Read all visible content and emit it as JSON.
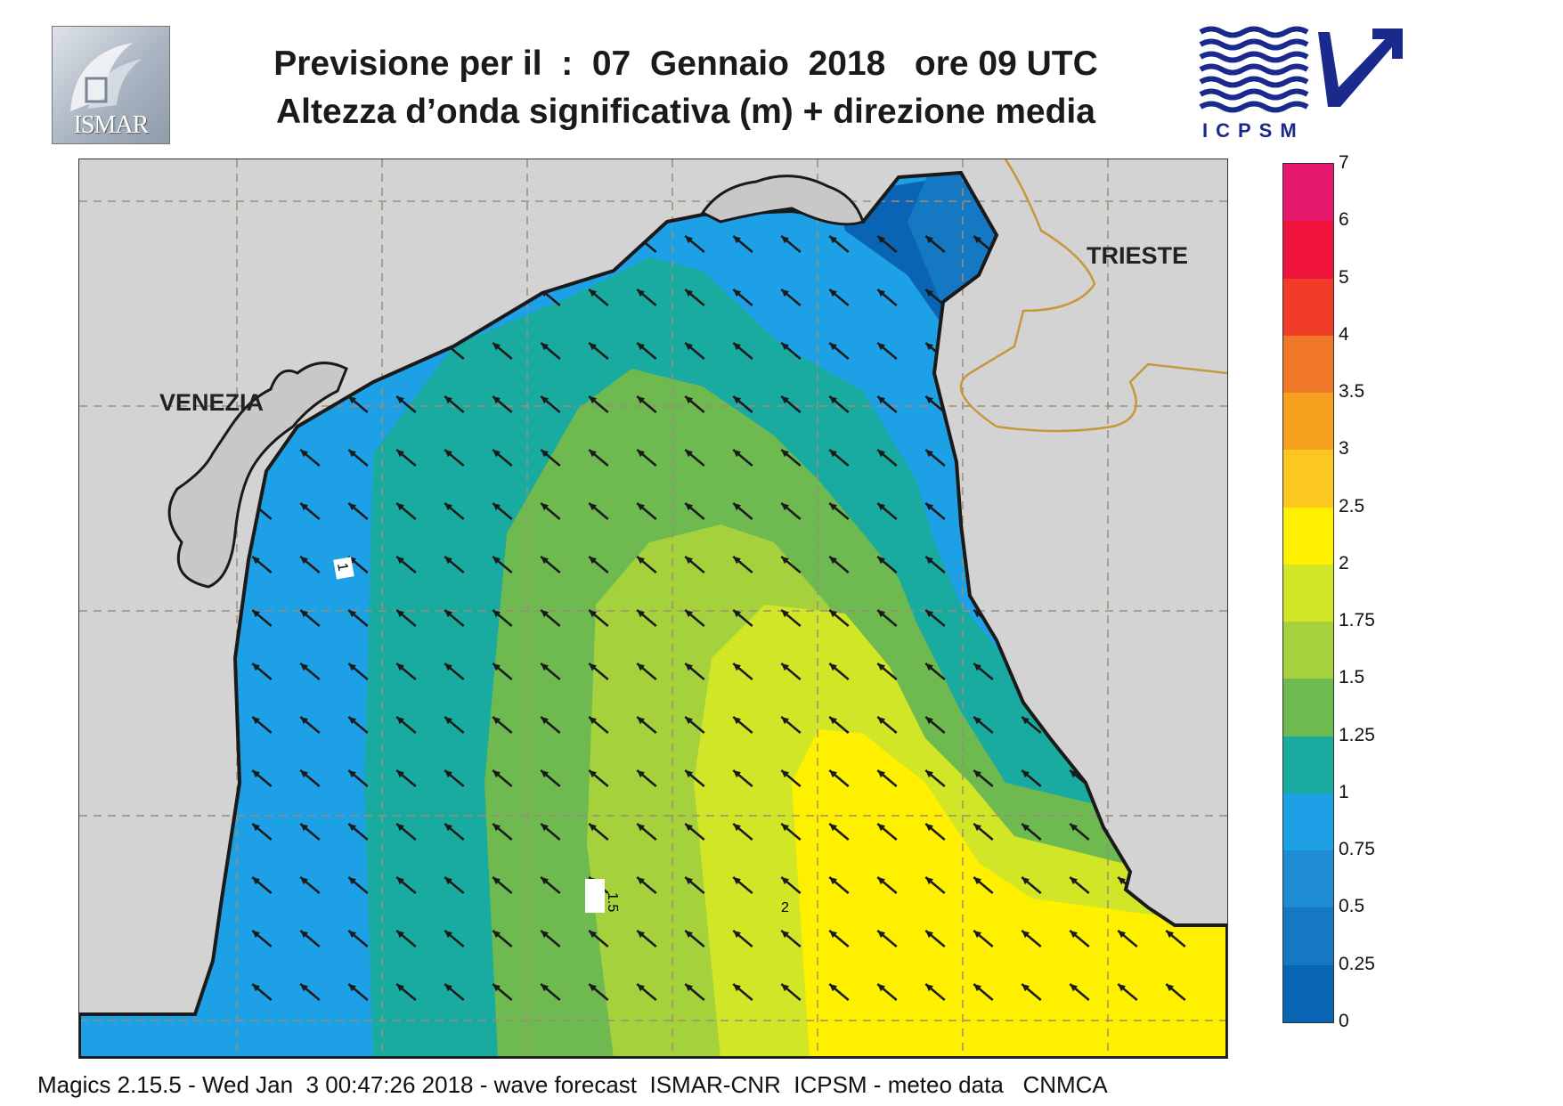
{
  "header": {
    "title_line1": "Previsione per il  :  07  Gennaio  2018   ore 09 UTC",
    "title_line2": "Altezza d’onda significativa (m) + direzione media"
  },
  "logos": {
    "left": {
      "icon": "ismar-logo",
      "text": "ISMAR"
    },
    "right": {
      "icon": "icpsm-logo",
      "text": "ICPSM"
    }
  },
  "map": {
    "cities": [
      {
        "name": "VENEZIA"
      },
      {
        "name": "TRIESTE"
      }
    ],
    "contour_labels": [
      "1",
      "1.5",
      "2"
    ],
    "arrow_direction": "north-west",
    "colors": {
      "land": "#d3d3d3",
      "grid": "#a08c78",
      "coast": "#1a1a1a",
      "border": "#c8963c"
    }
  },
  "legend": {
    "unit": "m",
    "bins": [
      {
        "label": "7",
        "color": "#e6196e"
      },
      {
        "label": "6",
        "color": "#f0143c"
      },
      {
        "label": "5",
        "color": "#f03c28"
      },
      {
        "label": "4",
        "color": "#f07828"
      },
      {
        "label": "3.5",
        "color": "#f5a01e"
      },
      {
        "label": "3",
        "color": "#fac81e"
      },
      {
        "label": "2.5",
        "color": "#fff000"
      },
      {
        "label": "2",
        "color": "#d2e628"
      },
      {
        "label": "1.75",
        "color": "#a5d23c"
      },
      {
        "label": "1.5",
        "color": "#6eb950"
      },
      {
        "label": "1.25",
        "color": "#19aaa0"
      },
      {
        "label": "1",
        "color": "#1ea0e6"
      },
      {
        "label": "0.75",
        "color": "#1e8cd2"
      },
      {
        "label": "0.5",
        "color": "#1478c3"
      },
      {
        "label": "0.25",
        "color": "#0a64b4"
      },
      {
        "label": "0",
        "color": ""
      }
    ]
  },
  "footer": {
    "text": "Magics 2.15.5 - Wed Jan  3 00:47:26 2018 - wave forecast  ISMAR-CNR  ICPSM - meteo data   CNMCA"
  }
}
